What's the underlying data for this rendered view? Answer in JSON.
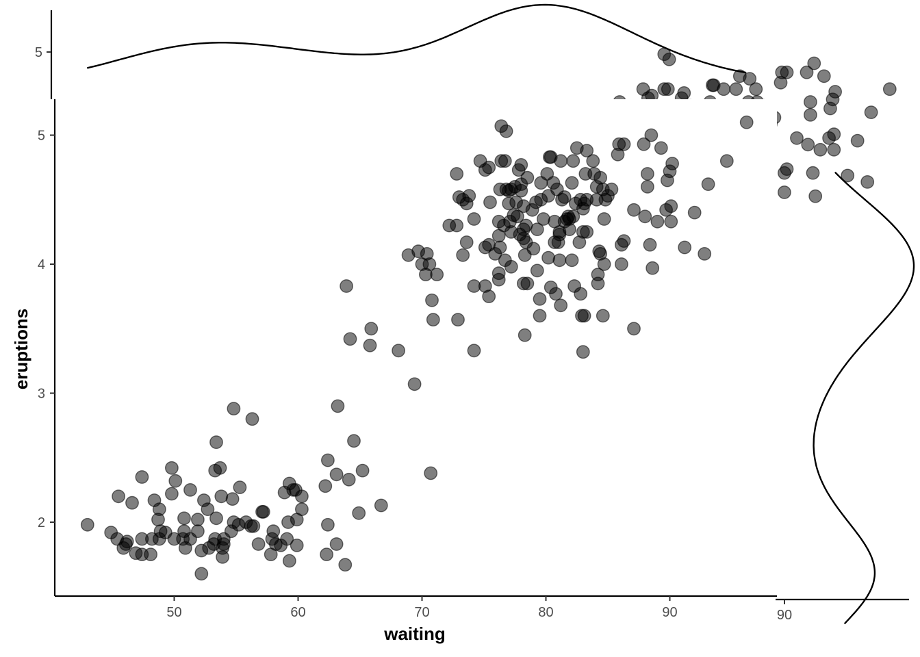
{
  "chart_data": {
    "type": "scatter",
    "title": "",
    "xlabel": "waiting",
    "ylabel": "eruptions",
    "xlim": [
      40,
      98
    ],
    "ylim": [
      1.4,
      5.3
    ],
    "x_ticks": [
      50,
      60,
      70,
      80,
      90
    ],
    "y_ticks": [
      2,
      3,
      4,
      5
    ],
    "grid": false,
    "point_color": "#000000",
    "point_alpha": 0.5,
    "marginal": {
      "top": {
        "type": "density",
        "variable": "waiting",
        "axis_tick_label": "5",
        "axis_tick_value": 5
      },
      "right": {
        "type": "density",
        "variable": "eruptions",
        "axis_tick_label": "90",
        "axis_tick_value": 90
      }
    },
    "points": [
      [
        43,
        1.98
      ],
      [
        44.9,
        1.92
      ],
      [
        45.5,
        2.2
      ],
      [
        45.4,
        1.87
      ],
      [
        45.9,
        1.8
      ],
      [
        46.1,
        1.83
      ],
      [
        46.2,
        1.85
      ],
      [
        46.6,
        2.15
      ],
      [
        46.9,
        1.76
      ],
      [
        47.4,
        1.75
      ],
      [
        47.4,
        1.87
      ],
      [
        47.4,
        2.35
      ],
      [
        48.1,
        1.75
      ],
      [
        48.2,
        1.87
      ],
      [
        48.4,
        2.17
      ],
      [
        48.8,
        2.1
      ],
      [
        48.7,
        2.02
      ],
      [
        48.9,
        1.93
      ],
      [
        49.3,
        1.92
      ],
      [
        48.8,
        1.87
      ],
      [
        49.8,
        2.42
      ],
      [
        49.8,
        2.22
      ],
      [
        50.1,
        2.32
      ],
      [
        50,
        1.87
      ],
      [
        50.8,
        2.03
      ],
      [
        50.8,
        1.93
      ],
      [
        50.7,
        1.87
      ],
      [
        50.9,
        1.8
      ],
      [
        51.3,
        1.87
      ],
      [
        51.3,
        2.25
      ],
      [
        51.9,
        2.02
      ],
      [
        51.9,
        1.93
      ],
      [
        52.2,
        1.6
      ],
      [
        52.2,
        1.78
      ],
      [
        52.4,
        2.17
      ],
      [
        52.7,
        2.1
      ],
      [
        52.8,
        1.8
      ],
      [
        53.3,
        1.87
      ],
      [
        53.2,
        1.83
      ],
      [
        53.4,
        2.03
      ],
      [
        53.3,
        2.4
      ],
      [
        53.4,
        2.62
      ],
      [
        53.7,
        2.42
      ],
      [
        53.9,
        1.73
      ],
      [
        53.9,
        1.8
      ],
      [
        54,
        1.83
      ],
      [
        54,
        1.87
      ],
      [
        53.8,
        2.2
      ],
      [
        54.6,
        1.93
      ],
      [
        54.8,
        2.88
      ],
      [
        54.7,
        2.18
      ],
      [
        54.8,
        2
      ],
      [
        55.3,
        2.27
      ],
      [
        55.2,
        1.98
      ],
      [
        55.8,
        2
      ],
      [
        56.3,
        2.8
      ],
      [
        56.2,
        1.97
      ],
      [
        56.4,
        1.97
      ],
      [
        56.8,
        1.83
      ],
      [
        57.1,
        2.08
      ],
      [
        57.2,
        2.08
      ],
      [
        57.8,
        1.75
      ],
      [
        57.9,
        1.87
      ],
      [
        58,
        1.93
      ],
      [
        58.2,
        1.83
      ],
      [
        58.6,
        1.82
      ],
      [
        58.9,
        2.23
      ],
      [
        59.1,
        1.87
      ],
      [
        59.2,
        2
      ],
      [
        59.3,
        2.3
      ],
      [
        59.3,
        1.7
      ],
      [
        59.6,
        2.25
      ],
      [
        59.8,
        2.25
      ],
      [
        59.9,
        2.02
      ],
      [
        59.9,
        1.82
      ],
      [
        60.3,
        2.2
      ],
      [
        60.3,
        2.1
      ],
      [
        62.3,
        1.75
      ],
      [
        62.2,
        2.28
      ],
      [
        62.4,
        2.48
      ],
      [
        62.4,
        1.98
      ],
      [
        63.1,
        2.37
      ],
      [
        63.2,
        2.9
      ],
      [
        63.1,
        1.83
      ],
      [
        63.8,
        1.67
      ],
      [
        64.1,
        2.33
      ],
      [
        64.5,
        2.63
      ],
      [
        64.9,
        2.07
      ],
      [
        65.2,
        2.4
      ],
      [
        63.9,
        3.83
      ],
      [
        64.2,
        3.42
      ],
      [
        65.9,
        3.5
      ],
      [
        65.8,
        3.37
      ],
      [
        66.7,
        2.13
      ],
      [
        68.1,
        3.33
      ],
      [
        68.9,
        4.07
      ],
      [
        69.4,
        3.07
      ],
      [
        69.7,
        4.1
      ],
      [
        70,
        4
      ],
      [
        70.3,
        3.92
      ],
      [
        70.4,
        4.08
      ],
      [
        70.6,
        4
      ],
      [
        70.7,
        2.38
      ],
      [
        70.8,
        3.72
      ],
      [
        70.9,
        3.57
      ],
      [
        71.2,
        3.92
      ],
      [
        72.2,
        4.3
      ],
      [
        72.8,
        4.7
      ],
      [
        72.8,
        4.3
      ],
      [
        73,
        4.52
      ],
      [
        72.9,
        3.57
      ],
      [
        73.3,
        4.5
      ],
      [
        73.3,
        4.07
      ],
      [
        73.6,
        4.47
      ],
      [
        73.6,
        4.17
      ],
      [
        73.8,
        4.53
      ],
      [
        74.2,
        4.35
      ],
      [
        74.2,
        3.83
      ],
      [
        74.2,
        3.33
      ],
      [
        74.7,
        4.8
      ],
      [
        75.1,
        4.73
      ],
      [
        75.1,
        4.13
      ],
      [
        75.1,
        3.83
      ],
      [
        75.4,
        4.75
      ],
      [
        75.4,
        4.15
      ],
      [
        75.5,
        4.48
      ],
      [
        75.4,
        3.75
      ],
      [
        75.9,
        4.08
      ],
      [
        76.2,
        4.33
      ],
      [
        76.2,
        4.22
      ],
      [
        76.2,
        3.93
      ],
      [
        76.2,
        3.88
      ],
      [
        76.3,
        4.58
      ],
      [
        76.3,
        4.13
      ],
      [
        76.4,
        5.07
      ],
      [
        76.4,
        4.8
      ],
      [
        76.6,
        4.3
      ],
      [
        76.8,
        4.58
      ],
      [
        76.7,
        4.8
      ],
      [
        76.7,
        4.03
      ],
      [
        76.8,
        5.03
      ],
      [
        77,
        4.57
      ],
      [
        77,
        4.47
      ],
      [
        77.1,
        4.33
      ],
      [
        77.2,
        4.25
      ],
      [
        77.2,
        4.58
      ],
      [
        77.2,
        3.98
      ],
      [
        77.4,
        4.38
      ],
      [
        77.5,
        4.6
      ],
      [
        77.6,
        4.48
      ],
      [
        77.7,
        4.37
      ],
      [
        77.8,
        4.73
      ],
      [
        77.9,
        4.23
      ],
      [
        78,
        4.62
      ],
      [
        78,
        4.77
      ],
      [
        78,
        4.57
      ],
      [
        78.2,
        4.45
      ],
      [
        78.2,
        4.27
      ],
      [
        78.2,
        4.2
      ],
      [
        78.3,
        4.07
      ],
      [
        78.2,
        3.85
      ],
      [
        78.3,
        3.45
      ],
      [
        78.4,
        4.17
      ],
      [
        78.5,
        4.67
      ],
      [
        78.4,
        4.3
      ],
      [
        78.5,
        3.85
      ],
      [
        78.9,
        4.42
      ],
      [
        79,
        4.12
      ],
      [
        79.2,
        4.48
      ],
      [
        79.3,
        3.95
      ],
      [
        79.3,
        4.27
      ],
      [
        79.5,
        3.73
      ],
      [
        79.5,
        3.6
      ],
      [
        79.6,
        4.5
      ],
      [
        79.6,
        4.63
      ],
      [
        79.8,
        4.35
      ],
      [
        80.1,
        4.7
      ],
      [
        80.2,
        4.53
      ],
      [
        80.2,
        4.05
      ],
      [
        80.3,
        4.83
      ],
      [
        80.4,
        4.83
      ],
      [
        80.4,
        3.82
      ],
      [
        80.6,
        4.63
      ],
      [
        80.7,
        4.17
      ],
      [
        80.7,
        4.33
      ],
      [
        80.8,
        3.77
      ],
      [
        80.9,
        4.58
      ],
      [
        81,
        4.17
      ],
      [
        81.1,
        4.03
      ],
      [
        81.1,
        4.25
      ],
      [
        81.2,
        3.68
      ],
      [
        81.1,
        4.23
      ],
      [
        81.2,
        4.8
      ],
      [
        81.3,
        4.5
      ],
      [
        81.5,
        4.52
      ],
      [
        81.5,
        4.33
      ],
      [
        81.7,
        4.35
      ],
      [
        81.8,
        4.37
      ],
      [
        81.9,
        4.35
      ],
      [
        82.1,
        4.63
      ],
      [
        81.9,
        4.27
      ],
      [
        82.1,
        4.03
      ],
      [
        82.2,
        4.8
      ],
      [
        82.2,
        4.37
      ],
      [
        82.3,
        3.83
      ],
      [
        82.5,
        4.9
      ],
      [
        82.4,
        4.47
      ],
      [
        82.7,
        4.17
      ],
      [
        82.8,
        4.5
      ],
      [
        82.8,
        3.77
      ],
      [
        82.9,
        3.6
      ],
      [
        83,
        4.25
      ],
      [
        83,
        4.43
      ],
      [
        83,
        3.32
      ],
      [
        83.1,
        3.6
      ],
      [
        83.1,
        4.47
      ],
      [
        83.2,
        4.7
      ],
      [
        83.3,
        4.5
      ],
      [
        83.3,
        4.88
      ],
      [
        83.3,
        4.25
      ],
      [
        83.8,
        4.8
      ],
      [
        83.9,
        4.7
      ],
      [
        84.1,
        4.5
      ],
      [
        84.1,
        4.6
      ],
      [
        84.2,
        3.92
      ],
      [
        84.2,
        3.85
      ],
      [
        84.3,
        4.1
      ],
      [
        84.4,
        4.08
      ],
      [
        84.4,
        4.67
      ],
      [
        84.6,
        4.58
      ],
      [
        84.7,
        4.35
      ],
      [
        84.8,
        4.5
      ],
      [
        84.7,
        4
      ],
      [
        84.6,
        3.6
      ],
      [
        85,
        4.53
      ],
      [
        85.3,
        4.58
      ],
      [
        85.8,
        4.85
      ],
      [
        85.9,
        4.93
      ],
      [
        86.1,
        4.15
      ],
      [
        86.1,
        4
      ],
      [
        86.3,
        4.93
      ],
      [
        86.3,
        4.18
      ],
      [
        87.1,
        4.42
      ],
      [
        87.1,
        3.5
      ],
      [
        87.9,
        4.93
      ],
      [
        88,
        4.37
      ],
      [
        88.2,
        4.7
      ],
      [
        88.2,
        4.6
      ],
      [
        88.4,
        4.15
      ],
      [
        88.5,
        5
      ],
      [
        88.6,
        3.97
      ],
      [
        89,
        4.33
      ],
      [
        89.3,
        4.9
      ],
      [
        89.7,
        4.42
      ],
      [
        89.8,
        4.65
      ],
      [
        90,
        4.72
      ],
      [
        90.1,
        4.45
      ],
      [
        90.2,
        4.78
      ],
      [
        90.1,
        4.33
      ],
      [
        91.2,
        4.13
      ],
      [
        92,
        4.4
      ],
      [
        92.8,
        4.08
      ],
      [
        93.1,
        4.62
      ],
      [
        94.6,
        4.8
      ],
      [
        96.2,
        5.1
      ]
    ]
  }
}
